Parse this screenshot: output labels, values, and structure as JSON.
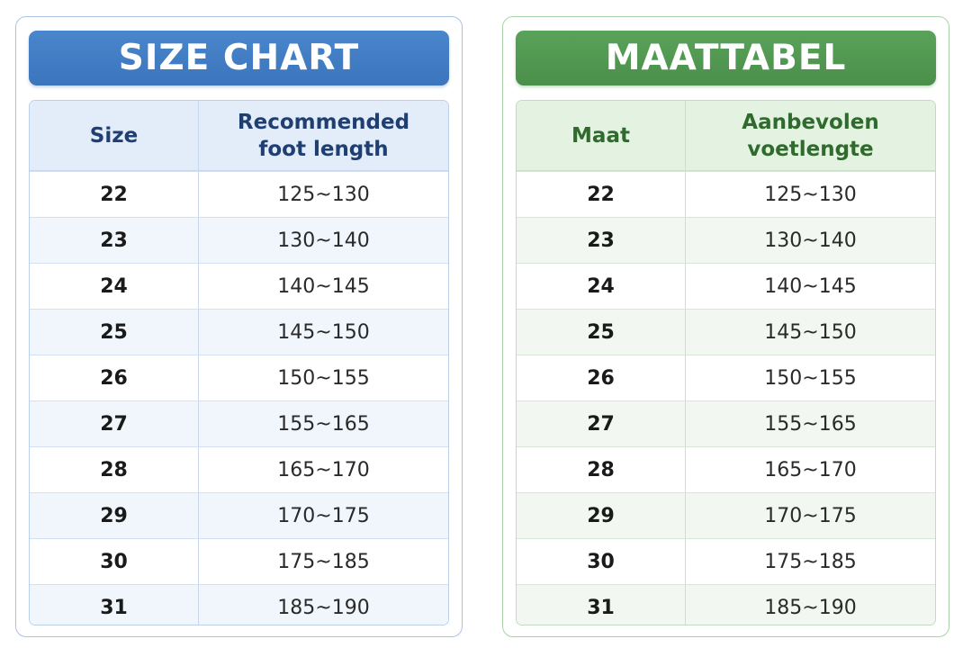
{
  "english": {
    "title": "SIZE CHART",
    "headers": {
      "size": "Size",
      "length_line1": "Recommended",
      "length_line2": "foot length"
    }
  },
  "dutch": {
    "title": "MAATTABEL",
    "headers": {
      "size": "Maat",
      "length_line1": "Aanbevolen",
      "length_line2": "voetlengte"
    }
  },
  "rows": [
    {
      "size": "22",
      "length": "125~130"
    },
    {
      "size": "23",
      "length": "130~140"
    },
    {
      "size": "24",
      "length": "140~145"
    },
    {
      "size": "25",
      "length": "145~150"
    },
    {
      "size": "26",
      "length": "150~155"
    },
    {
      "size": "27",
      "length": "155~165"
    },
    {
      "size": "28",
      "length": "165~170"
    },
    {
      "size": "29",
      "length": "170~175"
    },
    {
      "size": "30",
      "length": "175~185"
    },
    {
      "size": "31",
      "length": "185~190"
    }
  ],
  "colors": {
    "english_accent": "#3b75bd",
    "dutch_accent": "#4a8f4a"
  }
}
